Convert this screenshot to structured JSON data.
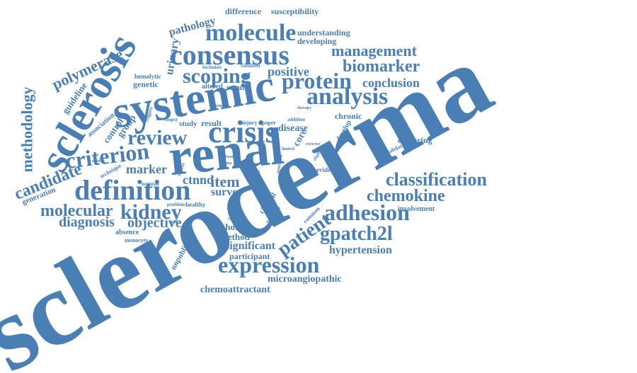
{
  "colors": {
    "word": "#4a7fb5",
    "background": "#ffffff"
  },
  "words": {
    "scleroderma": "scleroderma",
    "renal": "renal",
    "systemic": "systemic",
    "sclerosis": "sclerosis",
    "crisis": "crisis",
    "consensus": "consensus",
    "molecule": "molecule",
    "definition": "definition",
    "expression": "expression",
    "adhesion": "adhesion",
    "analysis": "analysis",
    "criterion": "criterion",
    "scoping": "scoping",
    "protein": "protein",
    "review": "review",
    "kidney": "kidney",
    "classification": "classification",
    "chemokine": "chemokine",
    "gpatch2l": "gpatch2l",
    "patient": "patient",
    "molecular": "molecular",
    "candidate": "candidate",
    "methodology": "methodology",
    "biomarker": "biomarker",
    "management": "management",
    "polymerase": "polymerase",
    "diagnosis": "diagnosis",
    "objective": "objective",
    "marker": "marker",
    "item": "item",
    "positive": "positive",
    "conclusion": "conclusion",
    "hypertension": "hypertension",
    "significant": "significant",
    "microangiopathic": "microangiopathic",
    "chemoattractant": "chemoattractant",
    "ctnnd": "ctnnd",
    "survey": "survey",
    "pathology": "pathology",
    "urinary": "urinary",
    "difference": "difference",
    "susceptibility": "susceptibility",
    "understanding": "understanding",
    "developing": "developing",
    "guideline": "guideline",
    "genetic": "genetic",
    "hemolytic": "hemolytic",
    "serum": "serum",
    "altered": "altered",
    "group": "group",
    "control": "control",
    "association": "association",
    "chronic": "chronic",
    "disease": "disease",
    "core": "core",
    "develop": "develop",
    "exploring": "exploring",
    "validation": "validation",
    "evidence": "evidence",
    "involvement": "involvement",
    "cohort": "cohort",
    "method": "method",
    "participant": "participant",
    "unpublished": "unpublished",
    "absence": "absence",
    "monocyte": "monocyte",
    "healthy": "healthy",
    "problem": "problem",
    "nominal": "nominal",
    "technique": "technique",
    "generation": "generation",
    "result": "result",
    "study": "study",
    "icam": "icam",
    "clinical": "clinical",
    "function": "function",
    "common": "common",
    "feasible": "feasible",
    "injury": "injury",
    "paper": "paper",
    "addition": "addition",
    "therapy": "therapy",
    "potential": "potential",
    "volunteer": "volunteer",
    "inclusion": "inclusion",
    "anemia": "anemia",
    "suggest": "suggest",
    "biopsy": "biopsy",
    "section": "section",
    "limited": "limited",
    "data": "data",
    "reduce": "reduce",
    "eligible": "eligible",
    "exercise": "exercise",
    "tissue": "tissue",
    "expert": "expert"
  }
}
